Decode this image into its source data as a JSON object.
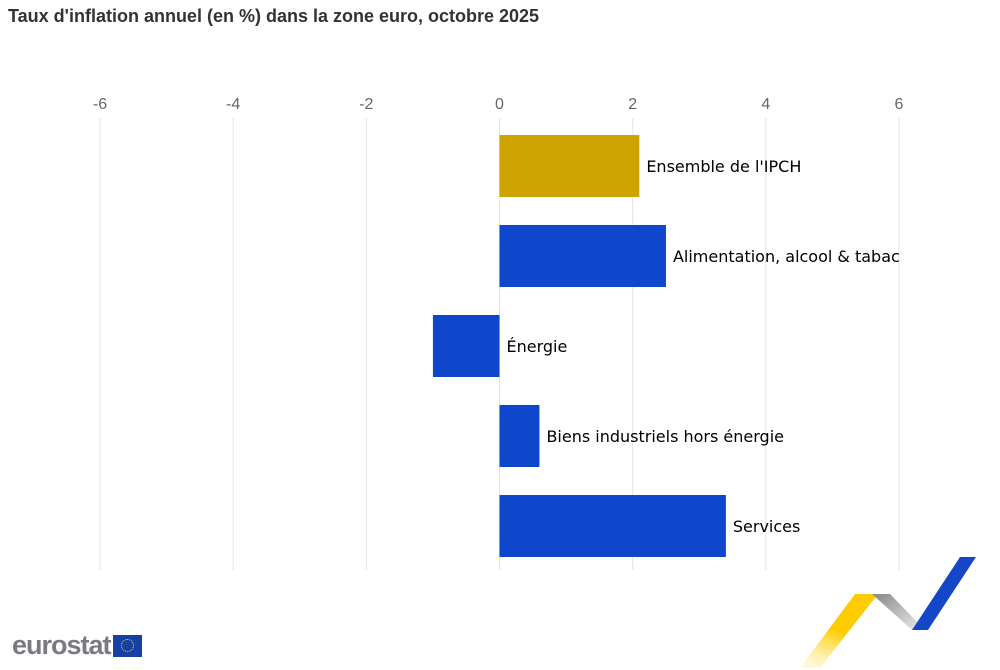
{
  "chart_data": {
    "type": "bar",
    "orientation": "horizontal",
    "title": "Taux d'inflation annuel (en %) dans la zone euro, octobre 2025",
    "categories": [
      "Ensemble de l'IPCH",
      "Alimentation, alcool & tabac",
      "Énergie",
      "Biens industriels hors énergie",
      "Services"
    ],
    "values": [
      2.1,
      2.5,
      -1.0,
      0.6,
      3.4
    ],
    "colors": [
      "#cca300",
      "#0f47cc",
      "#0f47cc",
      "#0f47cc",
      "#0f47cc"
    ],
    "xlim": [
      -6,
      6
    ],
    "xticks": [
      "-6",
      "-4",
      "-2",
      "0",
      "2",
      "4",
      "6"
    ],
    "xlabel": "",
    "ylabel": "",
    "grid": true,
    "xaxis_position": "top"
  },
  "branding": {
    "logo": "eurostat"
  }
}
